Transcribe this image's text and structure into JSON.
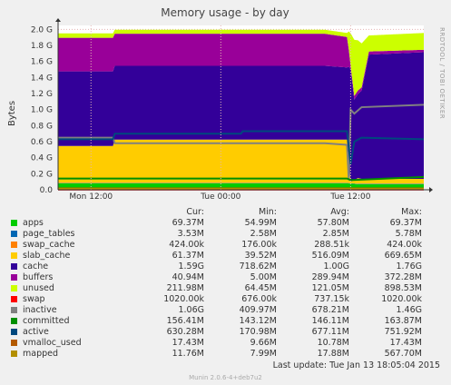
{
  "chart_data": {
    "type": "area",
    "title": "Memory usage - by day",
    "ylabel": "Bytes",
    "side_text": "RRDTOOL / TOBI OETIKER",
    "yticks": [
      "0.0",
      "0.2 G",
      "0.4 G",
      "0.6 G",
      "0.8 G",
      "1.0 G",
      "1.2 G",
      "1.4 G",
      "1.6 G",
      "1.8 G",
      "2.0 G"
    ],
    "ylim": [
      0,
      2.05
    ],
    "xticks": [
      {
        "label": "Mon 12:00",
        "t": 0.09
      },
      {
        "label": "Tue 00:00",
        "t": 0.445
      },
      {
        "label": "Tue 12:00",
        "t": 0.8
      }
    ],
    "stack": [
      {
        "name": "apps",
        "color": "#00cc00",
        "pts": [
          [
            0,
            0.08
          ],
          [
            0.3,
            0.08
          ],
          [
            0.79,
            0.08
          ],
          [
            0.82,
            0.07
          ],
          [
            1,
            0.07
          ]
        ]
      },
      {
        "name": "page_tables",
        "color": "#0066b3",
        "pts": [
          [
            0,
            0.004
          ],
          [
            1,
            0.004
          ]
        ]
      },
      {
        "name": "swap_cache",
        "color": "#ff8000",
        "pts": [
          [
            0,
            0.002
          ],
          [
            1,
            0.002
          ]
        ]
      },
      {
        "name": "slab_cache",
        "color": "#ffcc00",
        "pts": [
          [
            0,
            0.46
          ],
          [
            0.15,
            0.46
          ],
          [
            0.155,
            0.54
          ],
          [
            0.79,
            0.54
          ],
          [
            0.795,
            0.3
          ],
          [
            0.8,
            0.02
          ],
          [
            0.82,
            0.07
          ],
          [
            0.83,
            0.06
          ],
          [
            1,
            0.06
          ]
        ]
      },
      {
        "name": "cache",
        "color": "#330099",
        "pts": [
          [
            0,
            0.93
          ],
          [
            0.15,
            0.93
          ],
          [
            0.155,
            0.92
          ],
          [
            0.73,
            0.92
          ],
          [
            0.79,
            0.9
          ],
          [
            0.8,
            1.4
          ],
          [
            0.81,
            1.0
          ],
          [
            0.83,
            1.1
          ],
          [
            0.85,
            1.55
          ],
          [
            1,
            1.58
          ]
        ]
      },
      {
        "name": "buffers",
        "color": "#990099",
        "pts": [
          [
            0,
            0.42
          ],
          [
            0.15,
            0.42
          ],
          [
            0.155,
            0.4
          ],
          [
            0.73,
            0.4
          ],
          [
            0.79,
            0.38
          ],
          [
            0.8,
            0.05
          ],
          [
            0.83,
            0.04
          ],
          [
            1,
            0.03
          ]
        ]
      },
      {
        "name": "unused",
        "color": "#ccff00",
        "pts": [
          [
            0,
            0.055
          ],
          [
            0.15,
            0.055
          ],
          [
            0.155,
            0.05
          ],
          [
            0.79,
            0.05
          ],
          [
            0.8,
            0.4
          ],
          [
            0.81,
            0.7
          ],
          [
            0.83,
            0.55
          ],
          [
            0.85,
            0.2
          ],
          [
            1,
            0.21
          ]
        ]
      }
    ],
    "lines": [
      {
        "name": "swap",
        "color": "#ff0000",
        "pts": [
          [
            0,
            0.003
          ],
          [
            1,
            0.003
          ]
        ]
      },
      {
        "name": "inactive",
        "color": "#808080",
        "pts": [
          [
            0,
            0.65
          ],
          [
            0.15,
            0.65
          ],
          [
            0.155,
            0.58
          ],
          [
            0.73,
            0.58
          ],
          [
            0.79,
            0.56
          ],
          [
            0.795,
            0.12
          ],
          [
            0.8,
            1.0
          ],
          [
            0.81,
            0.95
          ],
          [
            0.83,
            1.03
          ],
          [
            1,
            1.06
          ]
        ]
      },
      {
        "name": "committed",
        "color": "#008f00",
        "pts": [
          [
            0,
            0.14
          ],
          [
            0.79,
            0.14
          ],
          [
            0.8,
            0.12
          ],
          [
            1,
            0.16
          ]
        ]
      },
      {
        "name": "active",
        "color": "#00487d",
        "pts": [
          [
            0,
            0.63
          ],
          [
            0.15,
            0.63
          ],
          [
            0.155,
            0.7
          ],
          [
            0.5,
            0.7
          ],
          [
            0.505,
            0.73
          ],
          [
            0.79,
            0.73
          ],
          [
            0.8,
            0.32
          ],
          [
            0.81,
            0.6
          ],
          [
            0.83,
            0.65
          ],
          [
            1,
            0.63
          ]
        ]
      },
      {
        "name": "vmalloc_used",
        "color": "#b35a00",
        "pts": [
          [
            0,
            0.017
          ],
          [
            1,
            0.017
          ]
        ]
      },
      {
        "name": "mapped",
        "color": "#b38f00",
        "pts": [
          [
            0,
            0.012
          ],
          [
            1,
            0.012
          ]
        ]
      }
    ]
  },
  "legend": {
    "headers": [
      "Cur:",
      "Min:",
      "Avg:",
      "Max:"
    ],
    "rows": [
      {
        "name": "apps",
        "color": "#00cc00",
        "cur": "69.37M",
        "min": "54.99M",
        "avg": "57.80M",
        "max": "69.37M"
      },
      {
        "name": "page_tables",
        "color": "#0066b3",
        "cur": "3.53M",
        "min": "2.58M",
        "avg": "2.85M",
        "max": "5.78M"
      },
      {
        "name": "swap_cache",
        "color": "#ff8000",
        "cur": "424.00k",
        "min": "176.00k",
        "avg": "288.51k",
        "max": "424.00k"
      },
      {
        "name": "slab_cache",
        "color": "#ffcc00",
        "cur": "61.37M",
        "min": "39.52M",
        "avg": "516.09M",
        "max": "669.65M"
      },
      {
        "name": "cache",
        "color": "#330099",
        "cur": "1.59G",
        "min": "718.62M",
        "avg": "1.00G",
        "max": "1.76G"
      },
      {
        "name": "buffers",
        "color": "#990099",
        "cur": "40.94M",
        "min": "5.00M",
        "avg": "289.94M",
        "max": "372.28M"
      },
      {
        "name": "unused",
        "color": "#ccff00",
        "cur": "211.98M",
        "min": "64.45M",
        "avg": "121.05M",
        "max": "898.53M"
      },
      {
        "name": "swap",
        "color": "#ff0000",
        "cur": "1020.00k",
        "min": "676.00k",
        "avg": "737.15k",
        "max": "1020.00k"
      },
      {
        "name": "inactive",
        "color": "#808080",
        "cur": "1.06G",
        "min": "409.97M",
        "avg": "678.21M",
        "max": "1.46G"
      },
      {
        "name": "committed",
        "color": "#008f00",
        "cur": "156.41M",
        "min": "143.12M",
        "avg": "146.11M",
        "max": "163.87M"
      },
      {
        "name": "active",
        "color": "#00487d",
        "cur": "630.28M",
        "min": "170.98M",
        "avg": "677.11M",
        "max": "751.92M"
      },
      {
        "name": "vmalloc_used",
        "color": "#b35a00",
        "cur": "17.43M",
        "min": "9.66M",
        "avg": "10.78M",
        "max": "17.43M"
      },
      {
        "name": "mapped",
        "color": "#b38f00",
        "cur": "11.76M",
        "min": "7.99M",
        "avg": "17.88M",
        "max": "567.70M"
      }
    ]
  },
  "footer": {
    "last_update": "Last update:  Tue Jan 13 18:05:04 2015",
    "generator": "Munin 2.0.6-4+deb7u2"
  }
}
